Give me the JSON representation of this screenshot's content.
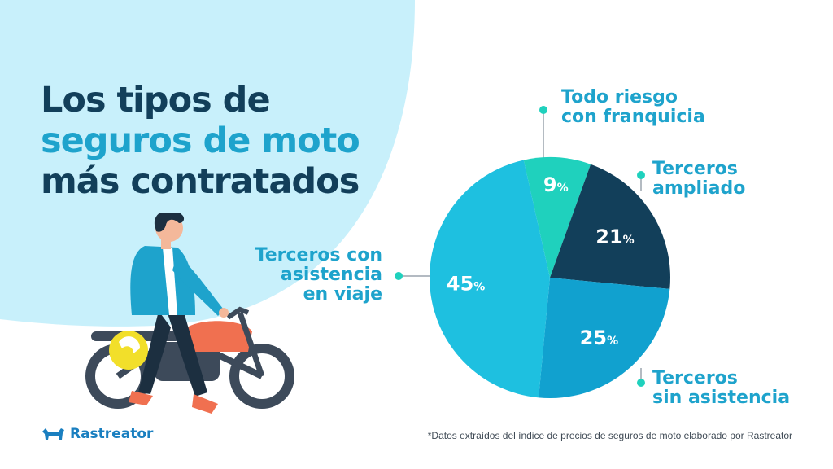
{
  "title": {
    "line1": "Los tipos de",
    "line2": "seguros de moto",
    "line3": "más contratados"
  },
  "colors": {
    "dark_navy": "#123f5a",
    "accent_blue": "#1ea3cc",
    "light_blue_bg": "#c8f0fb",
    "teal": "#1fd1bd",
    "cyan": "#1ec0e0",
    "mid_blue": "#11a1cf"
  },
  "chart_data": {
    "type": "pie",
    "slices": [
      {
        "label_lines": [
          "Todo riesgo",
          "con franquicia"
        ],
        "value": 9,
        "value_label": "9",
        "color": "#1fd1bd"
      },
      {
        "label_lines": [
          "Terceros",
          "ampliado"
        ],
        "value": 21,
        "value_label": "21",
        "color": "#123f5a"
      },
      {
        "label_lines": [
          "Terceros",
          "sin asistencia"
        ],
        "value": 25,
        "value_label": "25",
        "color": "#11a1cf"
      },
      {
        "label_lines": [
          "Terceros con",
          "asistencia",
          "en viaje"
        ],
        "value": 45,
        "value_label": "45",
        "color": "#1ec0e0"
      }
    ],
    "unit": "%"
  },
  "logo": {
    "name": "Rastreator",
    "icon": "dog-icon"
  },
  "footnote": "*Datos extraídos del índice de precios de seguros de moto elaborado por Rastreator",
  "illustration": {
    "icon": "person-with-motorcycle-icon"
  }
}
